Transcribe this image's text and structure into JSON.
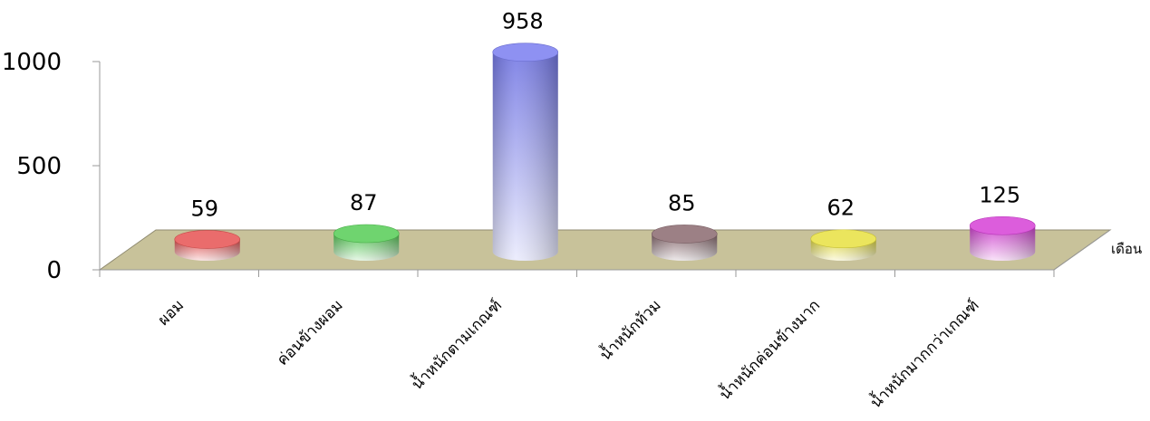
{
  "chart_data": {
    "type": "bar",
    "style": "3d-cylinder",
    "title": "",
    "xlabel": "เดือน",
    "ylabel": "",
    "ylim": [
      0,
      1000
    ],
    "yticks": [
      0,
      500,
      1000
    ],
    "grid": false,
    "legend": "none",
    "categories": [
      "ผอม",
      "ค่อนข้างผอม",
      "น้ำหนักตามเกณฑ์",
      "น้ำหนักท้วม",
      "น้ำหนักค่อนข้างมาก",
      "น้ำหนักมากกว่าเกณฑ์"
    ],
    "values": [
      59,
      87,
      958,
      85,
      62,
      125
    ],
    "colors": [
      "#e65252",
      "#55cc55",
      "#7a7ef0",
      "#8a6a70",
      "#e8e040",
      "#d640d6"
    ],
    "floor_color": "#c8c29a"
  }
}
